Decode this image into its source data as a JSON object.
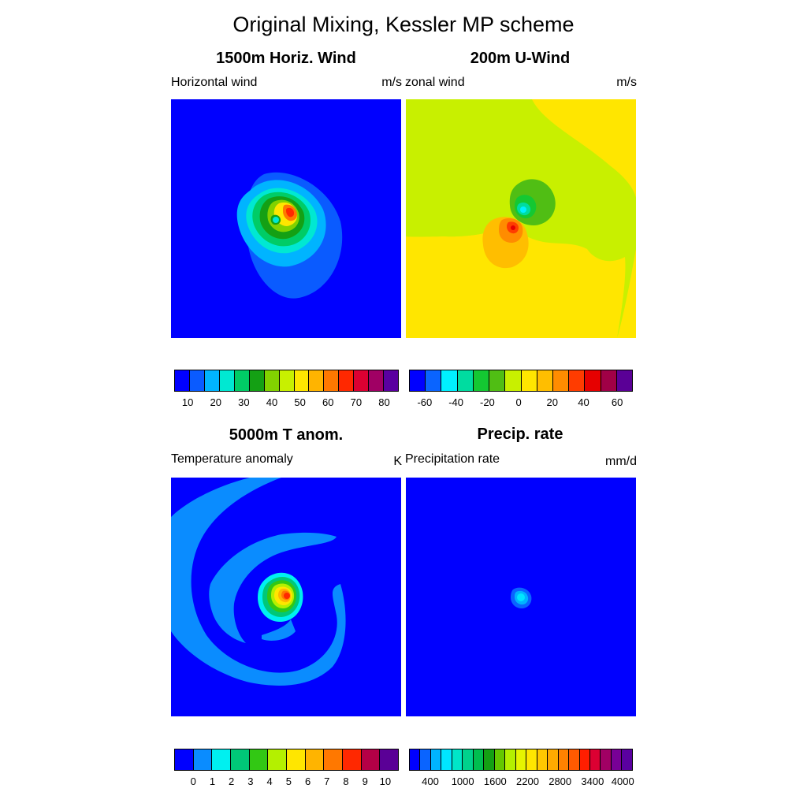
{
  "title": "Original Mixing,  Kessler MP scheme",
  "colors": {
    "background_blue": "#0000ff",
    "wind": [
      "#0000ff",
      "#0a5bff",
      "#00b4ff",
      "#00e8d2",
      "#00cc66",
      "#14a014",
      "#82d200",
      "#c8f000",
      "#ffe600",
      "#ffb400",
      "#ff7800",
      "#ff2800",
      "#dc0032",
      "#a00064",
      "#5a00a0"
    ],
    "uwind": [
      "#0000ff",
      "#0a64ff",
      "#00f0ff",
      "#00dca0",
      "#14c832",
      "#50be14",
      "#c8f000",
      "#ffe600",
      "#ffbe00",
      "#ff8c00",
      "#ff3c00",
      "#e60000",
      "#a00046",
      "#5a0096"
    ],
    "tanom": [
      "#0000ff",
      "#0a8cff",
      "#00f0f0",
      "#00c878",
      "#32c814",
      "#b4f000",
      "#ffe600",
      "#ffb400",
      "#ff7800",
      "#ff2800",
      "#b40046",
      "#5a0096"
    ],
    "precip": [
      "#0000ff",
      "#0a64ff",
      "#00b4ff",
      "#00e6ff",
      "#00e6c8",
      "#00d28c",
      "#00be50",
      "#14a014",
      "#64c800",
      "#b4f000",
      "#e6f500",
      "#ffe600",
      "#ffc800",
      "#ffaa00",
      "#ff8200",
      "#ff5a00",
      "#ff1e00",
      "#dc0032",
      "#a00064",
      "#780096",
      "#5a00a0"
    ]
  },
  "panels": [
    {
      "title": "1500m Horiz. Wind",
      "left_label": "Horizontal wind",
      "right_label": "m/s",
      "colorbar_ticks": [
        "10",
        "20",
        "30",
        "40",
        "50",
        "60",
        "70",
        "80"
      ]
    },
    {
      "title": "200m U-Wind",
      "left_label": "zonal wind",
      "right_label": "m/s",
      "colorbar_ticks": [
        "-60",
        "-40",
        "-20",
        "0",
        "20",
        "40",
        "60"
      ]
    },
    {
      "title": "5000m T anom.",
      "left_label": "Temperature anomaly",
      "right_label": "K",
      "colorbar_ticks": [
        "0",
        "1",
        "2",
        "3",
        "4",
        "5",
        "6",
        "7",
        "8",
        "9",
        "10"
      ]
    },
    {
      "title": "Precip. rate",
      "left_label": "Precipitation rate",
      "right_label": "mm/d",
      "colorbar_ticks": [
        "400",
        "1000",
        "1600",
        "2200",
        "2800",
        "3400",
        "4000"
      ]
    }
  ],
  "chart_data": [
    {
      "type": "heatmap",
      "title": "1500m Horiz. Wind",
      "variable": "Horizontal wind",
      "units": "m/s",
      "colorbar_levels": [
        5,
        10,
        15,
        20,
        25,
        30,
        35,
        40,
        45,
        50,
        55,
        60,
        65,
        70,
        75,
        80
      ],
      "colorbar_ticks": [
        10,
        20,
        30,
        40,
        50,
        60,
        70,
        80
      ],
      "observed_range": [
        0,
        65
      ]
    },
    {
      "type": "heatmap",
      "title": "200m U-Wind",
      "variable": "zonal wind",
      "units": "m/s",
      "colorbar_levels": [
        -70,
        -60,
        -50,
        -40,
        -30,
        -20,
        -10,
        0,
        10,
        20,
        30,
        40,
        50,
        60,
        70
      ],
      "colorbar_ticks": [
        -60,
        -40,
        -20,
        0,
        20,
        40,
        60
      ],
      "observed_range": [
        -50,
        40
      ]
    },
    {
      "type": "heatmap",
      "title": "5000m T anom.",
      "variable": "Temperature anomaly",
      "units": "K",
      "colorbar_levels": [
        0,
        1,
        2,
        3,
        4,
        5,
        6,
        7,
        8,
        9,
        10
      ],
      "colorbar_ticks": [
        0,
        1,
        2,
        3,
        4,
        5,
        6,
        7,
        8,
        9,
        10
      ],
      "observed_range": [
        0,
        9
      ]
    },
    {
      "type": "heatmap",
      "title": "Precip. rate",
      "variable": "Precipitation rate",
      "units": "mm/d",
      "colorbar_levels": [
        200,
        400,
        600,
        800,
        1000,
        1200,
        1400,
        1600,
        1800,
        2000,
        2200,
        2400,
        2600,
        2800,
        3000,
        3200,
        3400,
        3600,
        3800,
        4000
      ],
      "colorbar_ticks": [
        400,
        1000,
        1600,
        2200,
        2800,
        3400,
        4000
      ],
      "observed_range": [
        0,
        600
      ]
    }
  ]
}
